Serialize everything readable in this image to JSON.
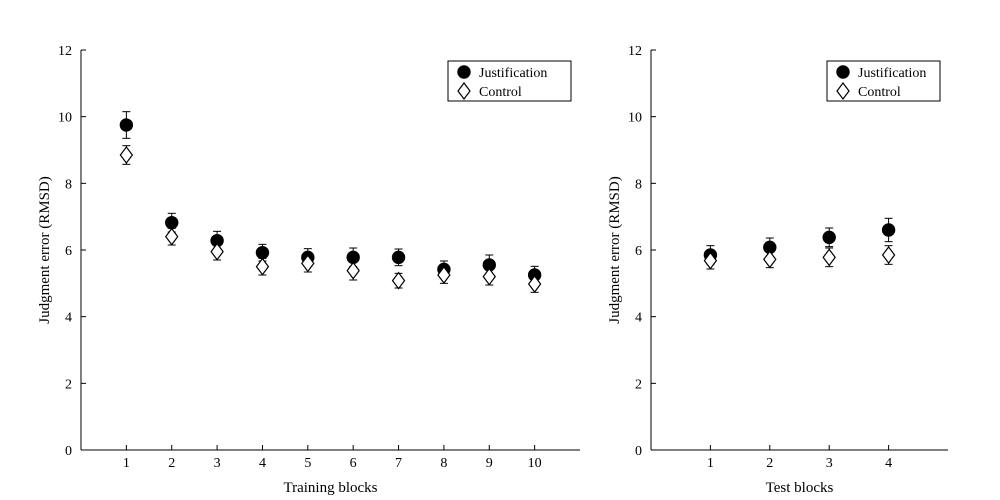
{
  "chart_data": [
    {
      "type": "scatter",
      "xlabel": "Training blocks",
      "ylabel": "Judgment error (RMSD)",
      "x": [
        1,
        2,
        3,
        4,
        5,
        6,
        7,
        8,
        9,
        10
      ],
      "xlim": [
        0,
        11
      ],
      "ylim": [
        0,
        12
      ],
      "yticks": [
        0,
        2,
        4,
        6,
        8,
        10,
        12
      ],
      "legend_position": "top-right",
      "series": [
        {
          "name": "Justification",
          "marker": "filled-circle",
          "values": [
            9.75,
            6.82,
            6.28,
            5.92,
            5.78,
            5.78,
            5.78,
            5.42,
            5.55,
            5.25
          ],
          "error": [
            0.4,
            0.28,
            0.28,
            0.25,
            0.26,
            0.28,
            0.25,
            0.25,
            0.3,
            0.26
          ]
        },
        {
          "name": "Control",
          "marker": "open-diamond",
          "values": [
            8.85,
            6.4,
            5.95,
            5.5,
            5.6,
            5.38,
            5.08,
            5.25,
            5.2,
            4.98
          ],
          "error": [
            0.28,
            0.25,
            0.25,
            0.25,
            0.26,
            0.28,
            0.22,
            0.25,
            0.25,
            0.25
          ]
        }
      ]
    },
    {
      "type": "scatter",
      "xlabel": "Test blocks",
      "ylabel": "Judgment error (RMSD)",
      "x": [
        1,
        2,
        3,
        4
      ],
      "xlim": [
        0,
        5
      ],
      "ylim": [
        0,
        12
      ],
      "yticks": [
        0,
        2,
        4,
        6,
        8,
        10,
        12
      ],
      "legend_position": "top-right",
      "series": [
        {
          "name": "Justification",
          "marker": "filled-circle",
          "values": [
            5.85,
            6.08,
            6.38,
            6.6
          ],
          "error": [
            0.28,
            0.28,
            0.28,
            0.35
          ]
        },
        {
          "name": "Control",
          "marker": "open-diamond",
          "values": [
            5.68,
            5.72,
            5.78,
            5.85
          ],
          "error": [
            0.25,
            0.25,
            0.28,
            0.28
          ]
        }
      ]
    }
  ]
}
